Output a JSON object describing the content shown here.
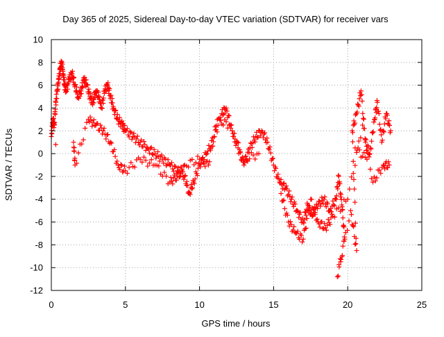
{
  "chart_data": {
    "type": "scatter",
    "title": "Day 365 of 2025, Sidereal Day-to-day VTEC variation (SDTVAR) for receiver vars",
    "xlabel": "GPS time / hours",
    "ylabel": "SDTVAR / TECUs",
    "xlim": [
      0,
      25
    ],
    "ylim": [
      -12,
      10
    ],
    "xticks": [
      0,
      5,
      10,
      15,
      20,
      25
    ],
    "yticks": [
      -12,
      -10,
      -8,
      -6,
      -4,
      -2,
      0,
      2,
      4,
      6,
      8,
      10
    ],
    "grid": true,
    "marker": "+",
    "series": [
      {
        "name": "vars",
        "color": "#ff0000",
        "points": [
          [
            0.0,
            1.5
          ],
          [
            0.1,
            3.0
          ],
          [
            0.2,
            2.5
          ],
          [
            0.3,
            4.5
          ],
          [
            0.4,
            5.5
          ],
          [
            0.5,
            6.5
          ],
          [
            0.6,
            7.5
          ],
          [
            0.7,
            8.0
          ],
          [
            0.8,
            7.0
          ],
          [
            0.9,
            6.0
          ],
          [
            1.0,
            5.5
          ],
          [
            1.2,
            6.5
          ],
          [
            1.4,
            7.0
          ],
          [
            1.6,
            6.0
          ],
          [
            1.8,
            5.0
          ],
          [
            2.0,
            5.5
          ],
          [
            2.2,
            6.5
          ],
          [
            2.4,
            6.0
          ],
          [
            2.6,
            5.0
          ],
          [
            2.8,
            4.5
          ],
          [
            3.0,
            5.5
          ],
          [
            3.2,
            5.0
          ],
          [
            3.4,
            4.0
          ],
          [
            3.6,
            5.5
          ],
          [
            3.8,
            6.0
          ],
          [
            4.0,
            5.0
          ],
          [
            4.2,
            4.0
          ],
          [
            4.5,
            3.0
          ],
          [
            4.8,
            2.5
          ],
          [
            5.0,
            2.0
          ],
          [
            5.5,
            1.5
          ],
          [
            6.0,
            1.0
          ],
          [
            6.5,
            0.5
          ],
          [
            7.0,
            0.0
          ],
          [
            7.5,
            -0.5
          ],
          [
            8.0,
            -1.0
          ],
          [
            8.5,
            -1.5
          ],
          [
            9.0,
            -2.0
          ],
          [
            9.3,
            -3.5
          ],
          [
            9.6,
            -2.5
          ],
          [
            10.0,
            -1.0
          ],
          [
            10.5,
            0.0
          ],
          [
            11.0,
            1.5
          ],
          [
            11.5,
            3.5
          ],
          [
            11.8,
            4.0
          ],
          [
            12.2,
            2.0
          ],
          [
            12.6,
            0.5
          ],
          [
            13.0,
            -1.0
          ],
          [
            13.4,
            0.5
          ],
          [
            13.8,
            1.5
          ],
          [
            14.2,
            2.0
          ],
          [
            14.6,
            1.0
          ],
          [
            15.0,
            -1.0
          ],
          [
            15.4,
            -2.5
          ],
          [
            15.8,
            -3.0
          ],
          [
            16.2,
            -4.0
          ],
          [
            16.6,
            -5.0
          ],
          [
            17.0,
            -6.0
          ],
          [
            17.3,
            -4.5
          ],
          [
            17.6,
            -5.5
          ],
          [
            18.0,
            -4.5
          ],
          [
            18.4,
            -4.0
          ],
          [
            18.8,
            -5.0
          ],
          [
            19.2,
            -4.0
          ],
          [
            19.4,
            -2.0
          ],
          [
            19.6,
            -4.5
          ],
          [
            19.8,
            -7.5
          ],
          [
            19.3,
            -10.8
          ],
          [
            20.2,
            -5.0
          ],
          [
            20.6,
            -8.5
          ],
          [
            20.3,
            2.0
          ],
          [
            20.6,
            3.5
          ],
          [
            20.9,
            5.5
          ],
          [
            21.2,
            1.0
          ],
          [
            21.5,
            0.0
          ],
          [
            21.8,
            3.0
          ],
          [
            22.0,
            4.5
          ],
          [
            22.3,
            1.0
          ],
          [
            22.6,
            3.5
          ],
          [
            22.9,
            2.0
          ],
          [
            0.3,
            0.8
          ],
          [
            1.5,
            1.0
          ],
          [
            1.6,
            -1.0
          ],
          [
            2.5,
            3.0
          ],
          [
            3.0,
            2.5
          ],
          [
            3.5,
            2.0
          ],
          [
            4.0,
            1.0
          ],
          [
            4.5,
            -1.0
          ],
          [
            5.0,
            -1.5
          ],
          [
            6.0,
            -0.5
          ],
          [
            7.0,
            -1.0
          ],
          [
            8.0,
            -2.5
          ],
          [
            8.5,
            -2.0
          ],
          [
            9.0,
            -1.0
          ],
          [
            10.0,
            -0.5
          ],
          [
            10.6,
            -1.0
          ],
          [
            11.2,
            3.0
          ],
          [
            12.0,
            2.5
          ],
          [
            13.0,
            -0.5
          ],
          [
            14.0,
            0.0
          ],
          [
            15.5,
            -3.5
          ],
          [
            16.0,
            -6.0
          ],
          [
            16.5,
            -7.0
          ],
          [
            17.0,
            -7.5
          ],
          [
            17.5,
            -4.0
          ],
          [
            18.0,
            -6.0
          ],
          [
            18.5,
            -6.5
          ],
          [
            19.0,
            -5.5
          ],
          [
            20.0,
            -4.0
          ],
          [
            21.0,
            2.5
          ],
          [
            21.7,
            -2.5
          ],
          [
            22.4,
            -1.0
          ],
          [
            22.8,
            -1.0
          ],
          [
            20.5,
            0.5
          ],
          [
            21.3,
            -0.5
          ]
        ]
      }
    ]
  }
}
